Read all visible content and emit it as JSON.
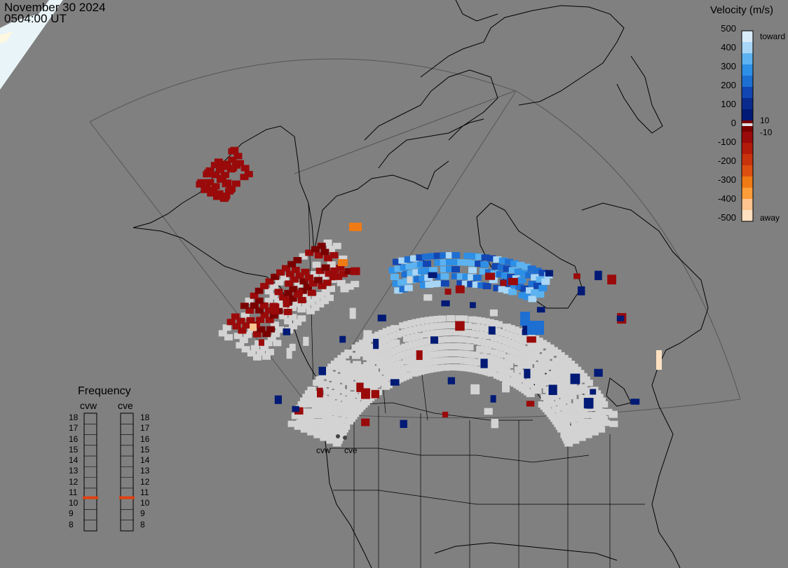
{
  "header": {
    "date": "November 30 2024",
    "time": "0504:00 UT"
  },
  "velocity_scale": {
    "title": "Velocity (m/s)",
    "ticks": [
      "500",
      "400",
      "300",
      "200",
      "100",
      "0",
      "-100",
      "-200",
      "-300",
      "-400",
      "-500"
    ],
    "toward_label": "toward",
    "away_label": "away",
    "plus_threshold": "10",
    "minus_threshold": "-10",
    "colors": [
      "#d8ecfa",
      "#a8d6f7",
      "#5db3f0",
      "#2e8fe6",
      "#1e6fd2",
      "#1246b3",
      "#0a2a8c",
      "#001a75",
      "#7a0000",
      "#9a0a0a",
      "#b21a0a",
      "#c8330d",
      "#dc4f10",
      "#f07a14",
      "#ff9d3a",
      "#ffc490",
      "#ffe0c0"
    ]
  },
  "frequency_panel": {
    "title": "Frequency",
    "radars": [
      "cvw",
      "cve"
    ],
    "levels": [
      "18",
      "17",
      "16",
      "15",
      "14",
      "13",
      "12",
      "11",
      "10",
      "9",
      "8"
    ],
    "current_cvw": 10.6,
    "current_cve": 10.6,
    "marker_color": "#e04010"
  },
  "sites": {
    "west": "cvw",
    "east": "cve"
  },
  "colors": {
    "background": "#808080",
    "coast": "#000000",
    "ground_scatter": "#d3d3d3",
    "fov_outline": "#555555"
  }
}
